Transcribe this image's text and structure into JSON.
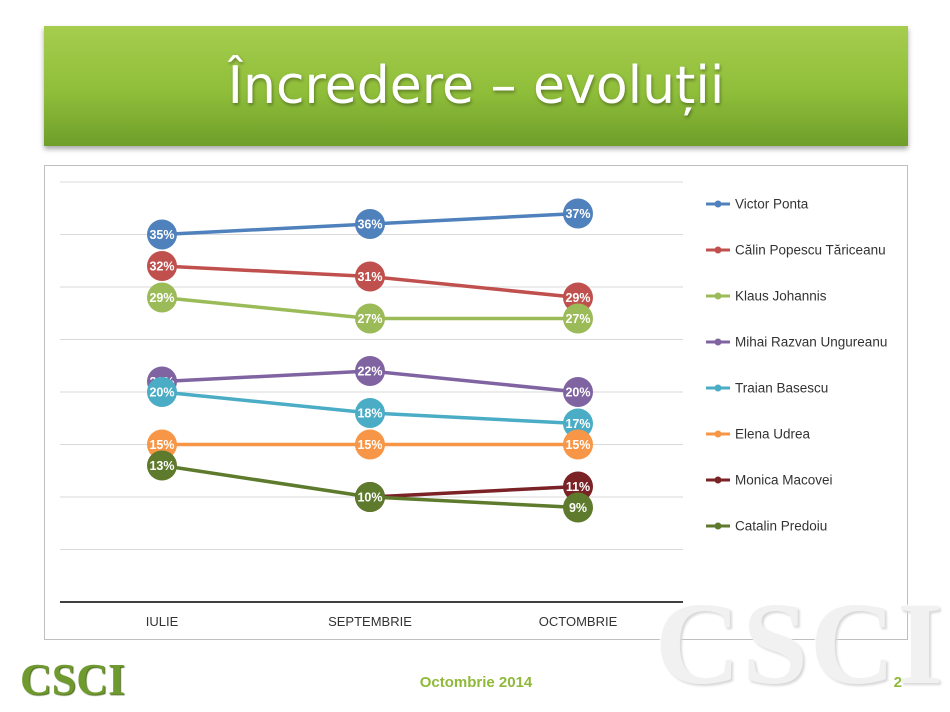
{
  "slide": {
    "title": "Încredere – evoluții",
    "footer_date": "Octombrie 2014",
    "page_number": "2",
    "logo_text": "CSCI",
    "watermark_text": "CSCI"
  },
  "chart_data": {
    "type": "line",
    "categories": [
      "IULIE",
      "SEPTEMBRIE",
      "OCTOMBRIE"
    ],
    "ylim": [
      0,
      40
    ],
    "grid": true,
    "legend_position": "right",
    "value_suffix": "%",
    "series": [
      {
        "name": "Victor Ponta",
        "values": [
          35,
          36,
          37
        ],
        "color": "#4f81bd"
      },
      {
        "name": "Călin Popescu Tăriceanu",
        "values": [
          32,
          31,
          29
        ],
        "color": "#c0504d"
      },
      {
        "name": "Klaus Johannis",
        "values": [
          29,
          27,
          27
        ],
        "color": "#9bbb59"
      },
      {
        "name": "Mihai Razvan Ungureanu",
        "values": [
          21,
          22,
          20
        ],
        "color": "#8064a2"
      },
      {
        "name": "Traian Basescu",
        "values": [
          20,
          18,
          17
        ],
        "color": "#4bacc6"
      },
      {
        "name": "Elena Udrea",
        "values": [
          15,
          15,
          15
        ],
        "color": "#f79646"
      },
      {
        "name": "Monica Macovei",
        "values": [
          null,
          10,
          11
        ],
        "color": "#7b2226"
      },
      {
        "name": "Catalin Predoiu",
        "values": [
          13,
          10,
          9
        ],
        "color": "#5e7a2c"
      }
    ]
  }
}
